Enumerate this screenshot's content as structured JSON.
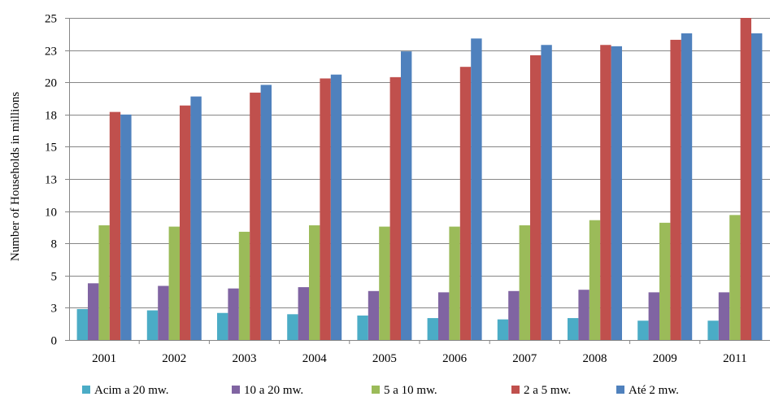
{
  "chart_data": {
    "type": "bar",
    "title": "",
    "xlabel": "",
    "ylabel": "Number of Households in millions",
    "categories": [
      "2001",
      "2002",
      "2003",
      "2004",
      "2005",
      "2006",
      "2007",
      "2008",
      "2009",
      "2011"
    ],
    "yticks": [
      {
        "label": "0",
        "value": 0
      },
      {
        "label": "3",
        "value": 2.5
      },
      {
        "label": "5",
        "value": 5
      },
      {
        "label": "8",
        "value": 7.5
      },
      {
        "label": "10",
        "value": 10
      },
      {
        "label": "13",
        "value": 12.5
      },
      {
        "label": "15",
        "value": 15
      },
      {
        "label": "18",
        "value": 17.5
      },
      {
        "label": "20",
        "value": 20
      },
      {
        "label": "23",
        "value": 22.5
      },
      {
        "label": "25",
        "value": 25
      }
    ],
    "ylim": [
      0,
      25
    ],
    "grid": true,
    "legend_position": "bottom",
    "series": [
      {
        "name": "Acim a 20 mw.",
        "color": "#4bacc6",
        "values": [
          2.4,
          2.3,
          2.1,
          2.0,
          1.9,
          1.7,
          1.6,
          1.7,
          1.5,
          1.5
        ]
      },
      {
        "name": "10 a 20 mw.",
        "color": "#8064a2",
        "values": [
          4.4,
          4.2,
          4.0,
          4.1,
          3.8,
          3.7,
          3.8,
          3.9,
          3.7,
          3.7
        ]
      },
      {
        "name": "5 a 10 mw.",
        "color": "#9bbb59",
        "values": [
          8.9,
          8.8,
          8.4,
          8.9,
          8.8,
          8.8,
          8.9,
          9.3,
          9.1,
          9.7
        ]
      },
      {
        "name": "2 a 5 mw.",
        "color": "#c0504d",
        "values": [
          17.7,
          18.2,
          19.2,
          20.3,
          20.4,
          21.2,
          22.1,
          22.9,
          23.3,
          25.0
        ]
      },
      {
        "name": "Até 2 mw.",
        "color": "#4f81bd",
        "values": [
          17.5,
          18.9,
          19.8,
          20.6,
          22.4,
          23.4,
          22.9,
          22.8,
          23.8,
          23.8
        ]
      }
    ]
  }
}
